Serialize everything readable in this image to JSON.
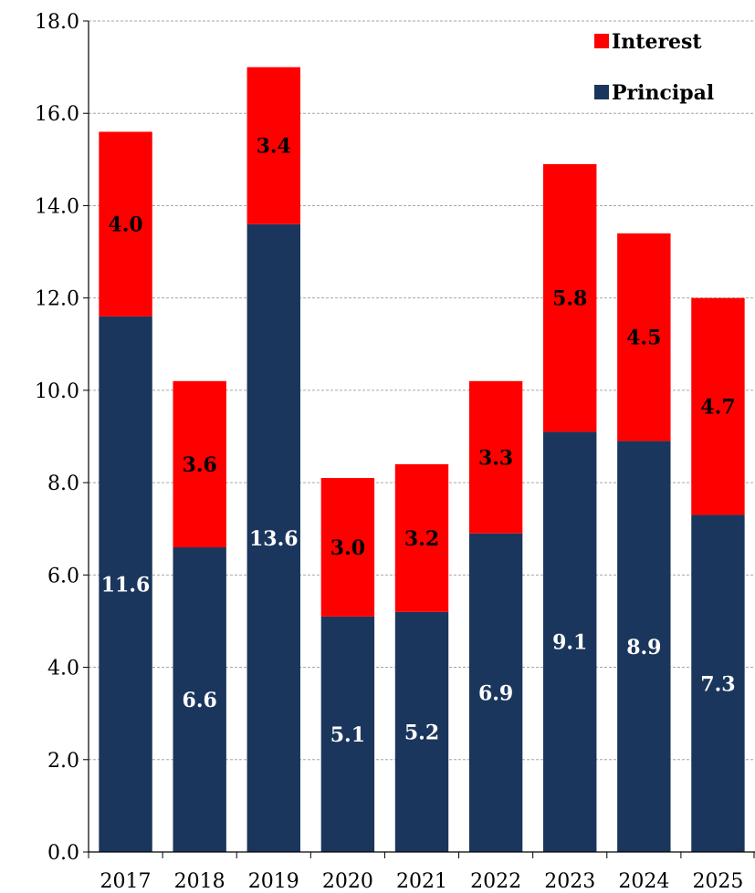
{
  "chart_data": {
    "type": "bar",
    "stacked": true,
    "categories": [
      "2017",
      "2018",
      "2019",
      "2020",
      "2021",
      "2022",
      "2023",
      "2024",
      "2025"
    ],
    "series": [
      {
        "name": "Principal",
        "color": "#1b365d",
        "label_color": "#ffffff",
        "values": [
          11.6,
          6.6,
          13.6,
          5.1,
          5.2,
          6.9,
          9.1,
          8.9,
          7.3
        ]
      },
      {
        "name": "Interest",
        "color": "#ff0000",
        "label_color": "#000000",
        "values": [
          4.0,
          3.6,
          3.4,
          3.0,
          3.2,
          3.3,
          5.8,
          4.5,
          4.7
        ]
      }
    ],
    "ylim": [
      0,
      18
    ],
    "ytick_step": 2,
    "ytick_labels": [
      "0.0",
      "2.0",
      "4.0",
      "6.0",
      "8.0",
      "10.0",
      "12.0",
      "14.0",
      "16.0",
      "18.0"
    ],
    "grid": true,
    "legend": {
      "position": "top-right",
      "order": [
        "Interest",
        "Principal"
      ]
    }
  }
}
